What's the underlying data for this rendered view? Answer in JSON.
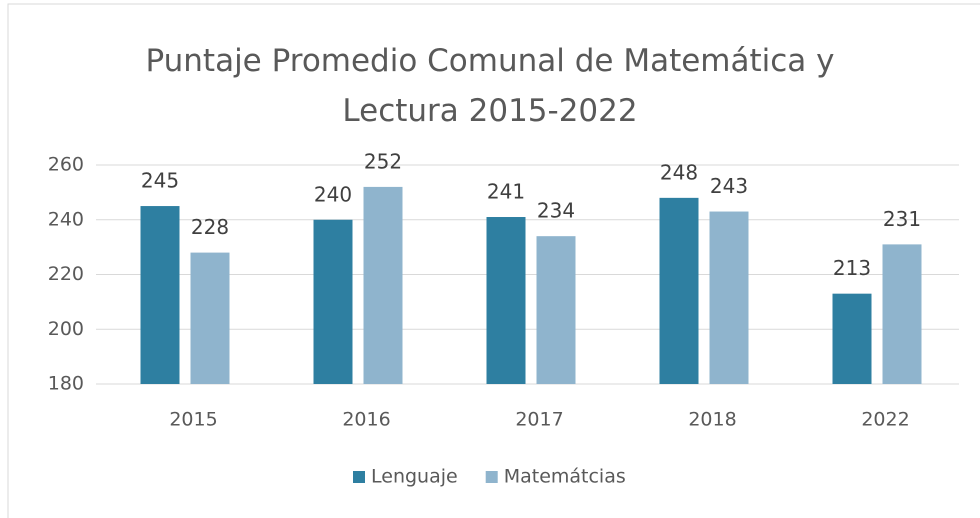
{
  "chart_data": {
    "type": "bar",
    "title": "Puntaje Promedio Comunal de Matemática y Lectura 2015-2022",
    "categories": [
      "2015",
      "2016",
      "2017",
      "2018",
      "2022"
    ],
    "series": [
      {
        "name": "Lenguaje",
        "color": "#2e7fa1",
        "values": [
          245,
          240,
          241,
          248,
          213
        ]
      },
      {
        "name": "Matemátcias",
        "color": "#8fb4cd",
        "values": [
          228,
          252,
          234,
          243,
          231
        ]
      }
    ],
    "ylim": [
      180,
      260
    ],
    "yticks": [
      180,
      200,
      220,
      240,
      260
    ],
    "grid": true,
    "legend": "bottom"
  }
}
